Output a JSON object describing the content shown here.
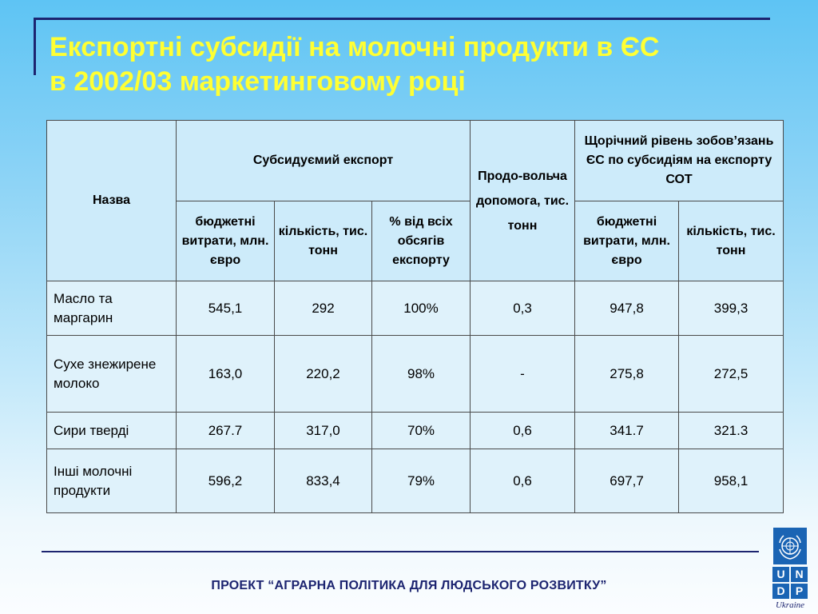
{
  "slide": {
    "title_line1": "Експортні субсидії на молочні продукти в ЄС",
    "title_line2": "в 2002/03 маркетинговому році",
    "footer": "ПРОЕКТ “АГРАРНА ПОЛІТИКА ДЛЯ ЛЮДСЬКОГО РОЗВИТКУ”"
  },
  "table": {
    "headers": {
      "name": "Назва",
      "subsidized_export": "Субсидуємий експорт",
      "food_aid": "Продо-вольча допомога, тис. тонн",
      "annual_commitments": "Щорічний рівень зобов’язань ЄС по субсидіям на експорту СОТ",
      "budget": "бюджетні витрати, млн. євро",
      "quantity": "кількість, тис. тонн",
      "percent": "% від всіх обсягів експорту",
      "budget2": "бюджетні витрати, млн. євро",
      "quantity2": "кількість, тис. тонн"
    },
    "rows": [
      {
        "name": "Масло та маргарин",
        "budget": "545,1",
        "quantity": "292",
        "percent": "100%",
        "food_aid": "0,3",
        "wto_budget": "947,8",
        "wto_quantity": "399,3"
      },
      {
        "name": "Сухе знежирене молоко",
        "budget": "163,0",
        "quantity": "220,2",
        "percent": "98%",
        "food_aid": "-",
        "wto_budget": "275,8",
        "wto_quantity": "272,5"
      },
      {
        "name": "Сири тверді",
        "budget": "267.7",
        "quantity": "317,0",
        "percent": "70%",
        "food_aid": "0,6",
        "wto_budget": "341.7",
        "wto_quantity": "321.3"
      },
      {
        "name": "Інші молочні продукти",
        "budget": "596,2",
        "quantity": "833,4",
        "percent": "79%",
        "food_aid": "0,6",
        "wto_budget": "697,7",
        "wto_quantity": "958,1"
      }
    ]
  },
  "logo": {
    "letters": [
      "U",
      "N",
      "D",
      "P"
    ],
    "country": "Ukraine",
    "icon": "un-emblem-icon"
  }
}
